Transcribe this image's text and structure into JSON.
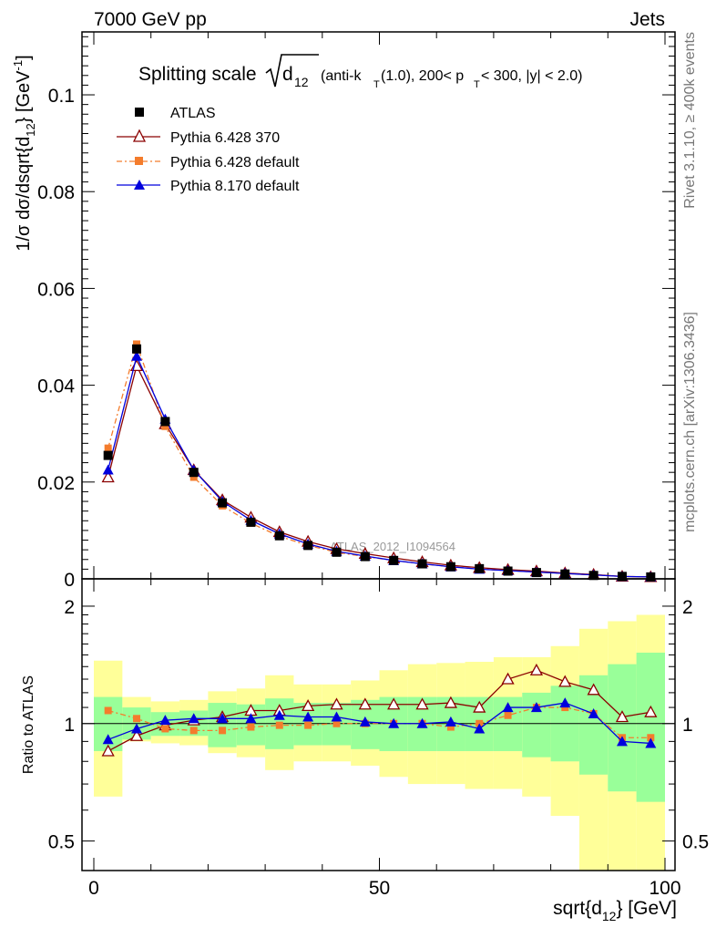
{
  "header": {
    "left": "7000 GeV pp",
    "right": "Jets"
  },
  "side_labels": {
    "top": "Rivet 3.1.10, ≥ 400k events",
    "bottom": "mcplots.cern.ch [arXiv:1306.3436]"
  },
  "watermark": "ATLAS_2012_I1094564",
  "colors": {
    "atlas": "#000000",
    "py6_370": "#8b0000",
    "py6_default": "#f47c2c",
    "py8_default": "#0000dd",
    "band_inner": "#99ff99",
    "band_outer": "#ffff99"
  },
  "chart_data": [
    {
      "panel": "main",
      "type": "line",
      "title": "Splitting scale √d12 (anti-kT(1.0), 200< pT < 300, |y| < 2.0)",
      "title_parts": {
        "lead": "Splitting scale",
        "d": "d",
        "d_sub": "12",
        "a": " (anti-k",
        "a_sub": "T",
        "b": "(1.0), 200< p",
        "b_sub": "T",
        "c": " < 300, |y| < 2.0)"
      },
      "ylabel": "1/σ dσ/dsqrt{d12} [GeV⁻¹]",
      "ylabel_parts": {
        "a": "1/σ dσ/dsqrt{d",
        "a_sub": "12",
        "b": "} [GeV",
        "b_sup": "-1",
        "c": "]"
      },
      "xlim": [
        0,
        100
      ],
      "ylim": [
        0,
        0.113
      ],
      "y_ticks": [
        "0",
        "0.02",
        "0.04",
        "0.06",
        "0.08",
        "0.1"
      ],
      "grid": false,
      "legend_position": "top-left",
      "x": [
        2.5,
        7.5,
        12.5,
        17.5,
        22.5,
        27.5,
        32.5,
        37.5,
        42.5,
        47.5,
        52.5,
        57.5,
        62.5,
        67.5,
        72.5,
        77.5,
        82.5,
        87.5,
        92.5,
        97.5
      ],
      "series": [
        {
          "name": "ATLAS",
          "marker": "square",
          "values": [
            0.0255,
            0.0475,
            0.0325,
            0.022,
            0.0157,
            0.0117,
            0.0089,
            0.0069,
            0.0055,
            0.0046,
            0.0038,
            0.0031,
            0.0025,
            0.0021,
            0.0016,
            0.0013,
            0.001,
            0.0007,
            0.0005,
            0.0004
          ]
        },
        {
          "name": "Pythia 6.428 370",
          "marker": "open-triangle",
          "values": [
            0.021,
            0.044,
            0.032,
            0.0225,
            0.0163,
            0.0127,
            0.0097,
            0.0077,
            0.0062,
            0.0052,
            0.0043,
            0.0035,
            0.0028,
            0.0023,
            0.0019,
            0.0016,
            0.0012,
            0.0009,
            0.0005,
            0.0004
          ]
        },
        {
          "name": "Pythia 6.428 default",
          "marker": "square",
          "dashed": true,
          "values": [
            0.027,
            0.0485,
            0.0315,
            0.021,
            0.0151,
            0.0115,
            0.0088,
            0.0069,
            0.0055,
            0.0046,
            0.0038,
            0.0031,
            0.0025,
            0.002,
            0.0017,
            0.0014,
            0.0011,
            0.0008,
            0.0005,
            0.0004
          ]
        },
        {
          "name": "Pythia 8.170 default",
          "marker": "triangle",
          "values": [
            0.0225,
            0.046,
            0.033,
            0.0225,
            0.016,
            0.0121,
            0.0093,
            0.0072,
            0.0057,
            0.0047,
            0.0038,
            0.0031,
            0.0025,
            0.002,
            0.0017,
            0.0014,
            0.0011,
            0.0008,
            0.0005,
            0.0004
          ]
        }
      ]
    },
    {
      "panel": "ratio",
      "type": "line",
      "ylabel": "Ratio to ATLAS",
      "xlabel": "sqrt{d12} [GeV]",
      "xlabel_parts": {
        "a": "sqrt{d",
        "a_sub": "12",
        "b": "} [GeV]"
      },
      "log_y": true,
      "xlim": [
        0,
        100
      ],
      "ylim": [
        0.42,
        2.35
      ],
      "y_ticks": [
        "0.5",
        "1",
        "2"
      ],
      "x_ticks": [
        "0",
        "50",
        "100"
      ],
      "grid": false,
      "x": [
        2.5,
        7.5,
        12.5,
        17.5,
        22.5,
        27.5,
        32.5,
        37.5,
        42.5,
        47.5,
        52.5,
        57.5,
        62.5,
        67.5,
        72.5,
        77.5,
        82.5,
        87.5,
        92.5,
        97.5
      ],
      "band_inner": {
        "lower": [
          0.85,
          0.91,
          0.93,
          0.93,
          0.87,
          0.88,
          0.86,
          0.88,
          0.88,
          0.86,
          0.85,
          0.85,
          0.85,
          0.85,
          0.85,
          0.82,
          0.8,
          0.74,
          0.67,
          0.63
        ],
        "upper": [
          1.17,
          1.1,
          1.07,
          1.08,
          1.13,
          1.12,
          1.16,
          1.13,
          1.13,
          1.15,
          1.17,
          1.17,
          1.17,
          1.17,
          1.17,
          1.2,
          1.25,
          1.33,
          1.42,
          1.52
        ]
      },
      "band_outer": {
        "lower": [
          0.65,
          0.9,
          0.89,
          0.88,
          0.84,
          0.82,
          0.76,
          0.8,
          0.8,
          0.78,
          0.73,
          0.7,
          0.7,
          0.68,
          0.68,
          0.65,
          0.58,
          0.42,
          0.4,
          0.34
        ],
        "upper": [
          1.45,
          1.17,
          1.14,
          1.15,
          1.21,
          1.23,
          1.33,
          1.26,
          1.26,
          1.29,
          1.37,
          1.42,
          1.43,
          1.44,
          1.48,
          1.48,
          1.58,
          1.75,
          1.83,
          1.9
        ]
      },
      "series": [
        {
          "name": "Pythia 6.428 370",
          "values": [
            0.85,
            0.93,
            0.99,
            1.02,
            1.04,
            1.08,
            1.08,
            1.11,
            1.12,
            1.12,
            1.12,
            1.12,
            1.13,
            1.1,
            1.3,
            1.37,
            1.28,
            1.22,
            1.04,
            1.07
          ]
        },
        {
          "name": "Pythia 6.428 default",
          "values": [
            1.08,
            1.03,
            0.97,
            0.96,
            0.96,
            0.98,
            0.99,
            0.99,
            1.0,
            1.0,
            1.0,
            1.0,
            0.98,
            1.0,
            1.05,
            1.1,
            1.1,
            1.06,
            0.92,
            0.92
          ]
        },
        {
          "name": "Pythia 8.170 default",
          "values": [
            0.91,
            0.97,
            1.02,
            1.03,
            1.03,
            1.03,
            1.05,
            1.04,
            1.04,
            1.01,
            1.0,
            1.0,
            1.01,
            0.97,
            1.1,
            1.1,
            1.13,
            1.06,
            0.9,
            0.89
          ]
        }
      ]
    }
  ]
}
